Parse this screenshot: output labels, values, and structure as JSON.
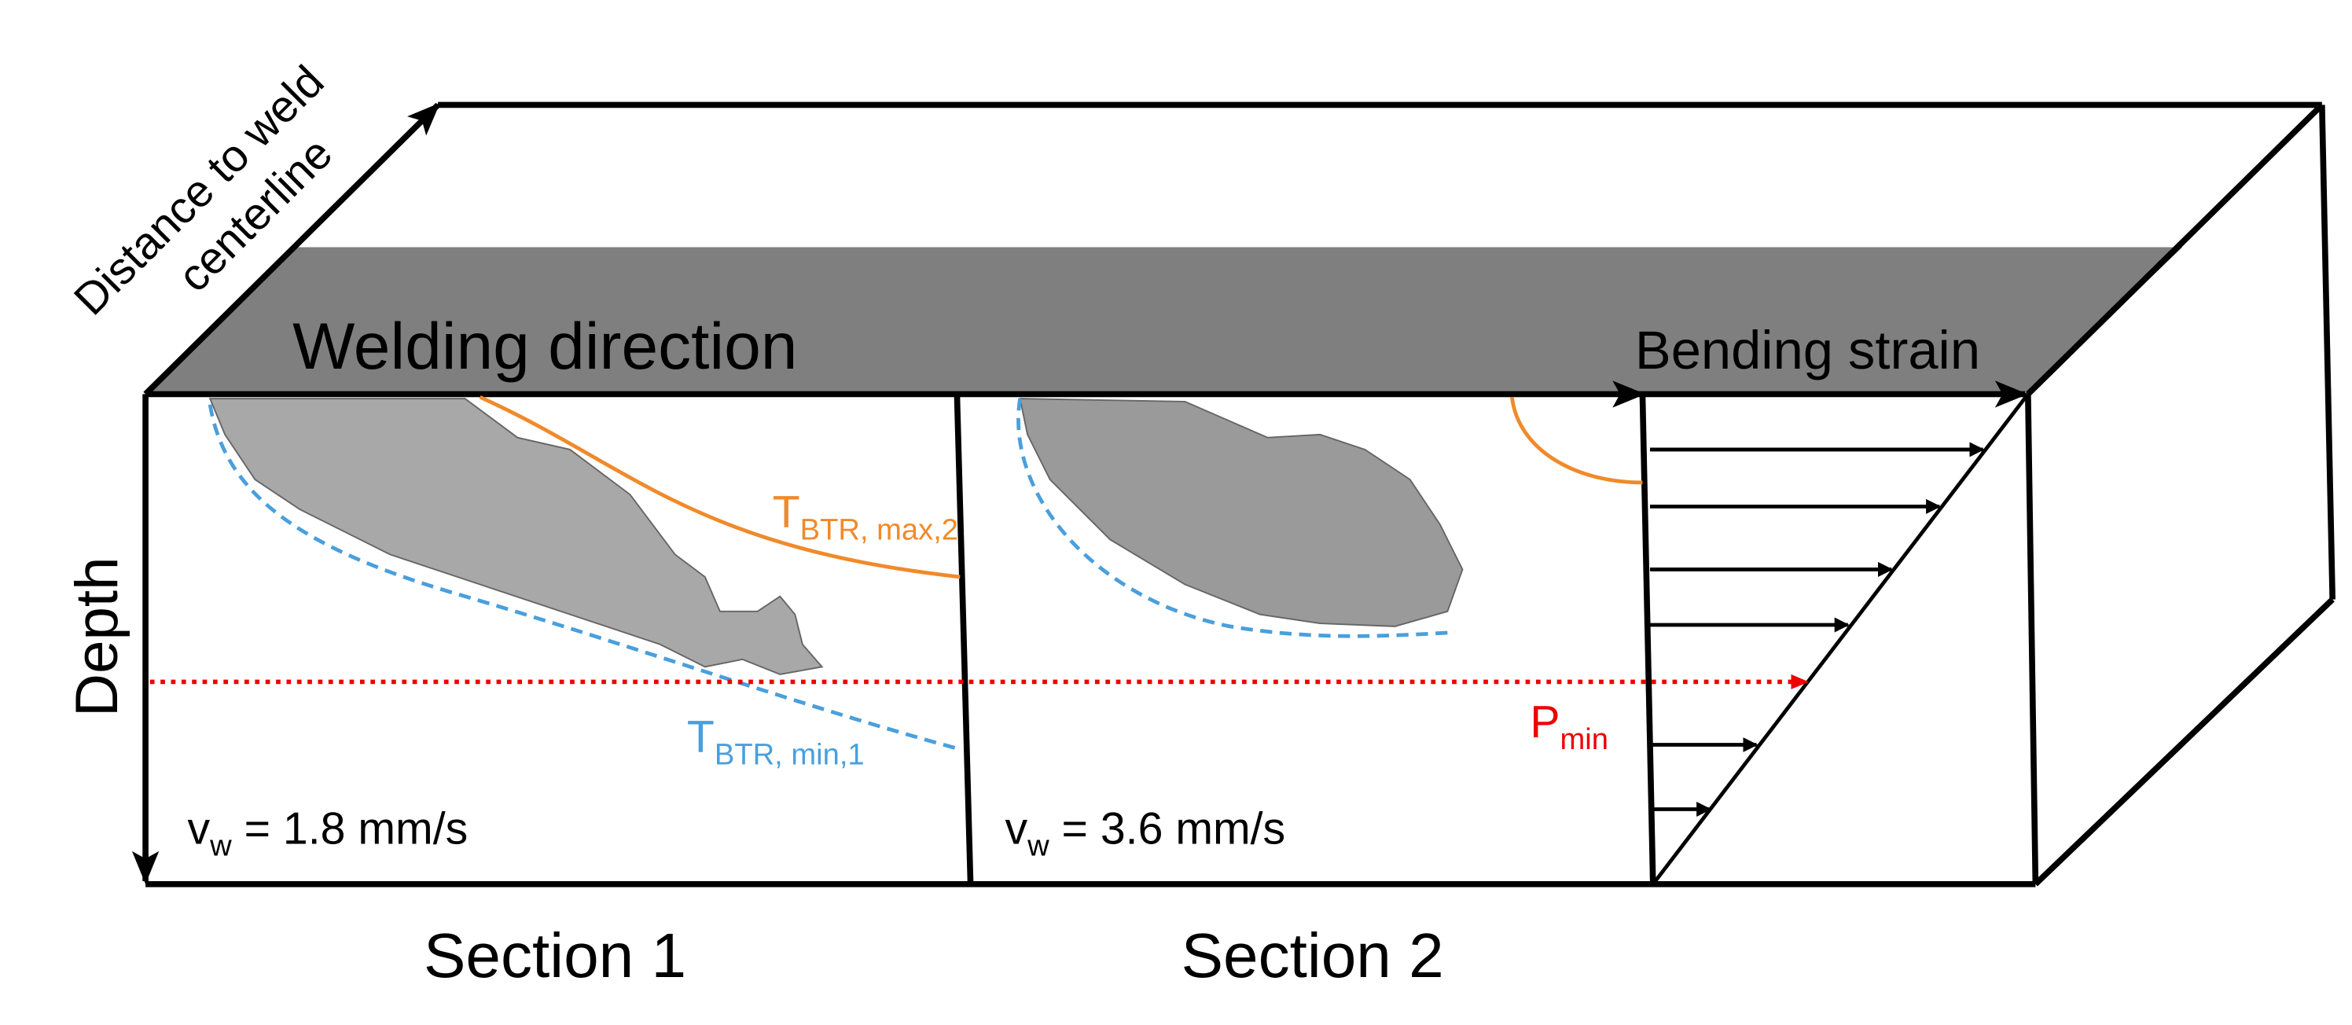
{
  "axes": {
    "distance": [
      "Distance to weld",
      "centerline"
    ],
    "depth": "Depth"
  },
  "header": {
    "welding_direction": "Welding direction",
    "bending_strain": "Bending strain"
  },
  "labels": {
    "t_max": {
      "main": "T",
      "sub": "BTR, max,2"
    },
    "t_min": {
      "main": "T",
      "sub": "BTR, min,1"
    },
    "p_min": {
      "main": "P",
      "sub": "min"
    }
  },
  "sections": [
    {
      "speed": {
        "main": "v",
        "sub": "w",
        "rest": " = 1.8 mm/s"
      },
      "name": "Section 1"
    },
    {
      "speed": {
        "main": "v",
        "sub": "w",
        "rest": " = 3.6 mm/s"
      },
      "name": "Section 2"
    }
  ]
}
